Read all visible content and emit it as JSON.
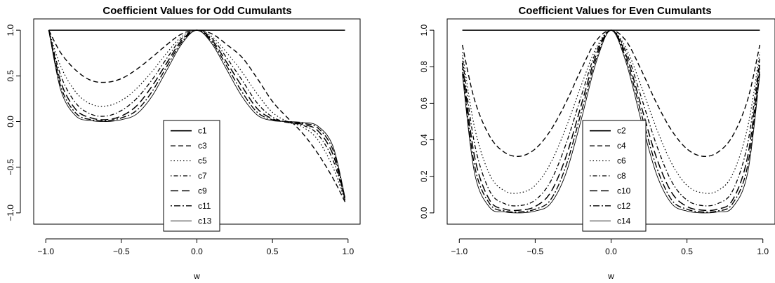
{
  "chart_data": [
    {
      "type": "line",
      "title": "Coefficient Values for Odd Cumulants",
      "xlabel": "w",
      "ylabel": "",
      "xlim": [
        -1.0,
        1.0
      ],
      "ylim": [
        -1.0,
        1.0
      ],
      "xticks": [
        -1.0,
        -0.5,
        0.0,
        0.5,
        1.0
      ],
      "xtick_labels": [
        "−1.0",
        "−0.5",
        "0.0",
        "0.5",
        "1.0"
      ],
      "yticks": [
        -1.0,
        -0.5,
        0.0,
        0.5,
        1.0
      ],
      "ytick_labels": [
        "−1.0",
        "−0.5",
        "0.0",
        "0.5",
        "1.0"
      ],
      "grid": false,
      "legend_position": "bottom-center",
      "x": [
        -0.98,
        -0.9,
        -0.8,
        -0.7,
        -0.6,
        -0.5,
        -0.4,
        -0.3,
        -0.2,
        -0.1,
        0.0,
        0.1,
        0.2,
        0.3,
        0.4,
        0.5,
        0.6,
        0.7,
        0.8,
        0.9,
        0.98
      ],
      "series": [
        {
          "name": "c1",
          "dash": "",
          "width": 1.6,
          "values": [
            1,
            1,
            1,
            1,
            1,
            1,
            1,
            1,
            1,
            1,
            1,
            1,
            1,
            1,
            1,
            1,
            1,
            1,
            1,
            1,
            1
          ]
        },
        {
          "name": "c3",
          "dash": "7,4",
          "width": 1.4,
          "values": [
            1.0,
            0.75,
            0.56,
            0.45,
            0.43,
            0.47,
            0.57,
            0.7,
            0.84,
            0.96,
            1.0,
            0.96,
            0.84,
            0.7,
            0.47,
            0.22,
            0.04,
            -0.13,
            -0.35,
            -0.62,
            -0.88
          ]
        },
        {
          "name": "c5",
          "dash": "1.5,3",
          "width": 1.2,
          "values": [
            1.0,
            0.6,
            0.32,
            0.19,
            0.17,
            0.23,
            0.36,
            0.54,
            0.75,
            0.93,
            1.0,
            0.93,
            0.75,
            0.54,
            0.3,
            0.1,
            0.0,
            -0.06,
            -0.2,
            -0.5,
            -0.87
          ]
        },
        {
          "name": "c7",
          "dash": "1.5,3,6,3",
          "width": 1.3,
          "values": [
            1.0,
            0.5,
            0.2,
            0.08,
            0.06,
            0.12,
            0.25,
            0.45,
            0.69,
            0.91,
            1.0,
            0.91,
            0.69,
            0.45,
            0.2,
            0.05,
            -0.01,
            -0.04,
            -0.14,
            -0.42,
            -0.86
          ]
        },
        {
          "name": "c9",
          "dash": "11,5",
          "width": 1.5,
          "values": [
            1.0,
            0.43,
            0.13,
            0.04,
            0.02,
            0.06,
            0.17,
            0.38,
            0.64,
            0.89,
            1.0,
            0.89,
            0.64,
            0.38,
            0.14,
            0.03,
            -0.01,
            -0.03,
            -0.1,
            -0.36,
            -0.85
          ]
        },
        {
          "name": "c11",
          "dash": "2,3,9,3",
          "width": 1.4,
          "values": [
            1.0,
            0.38,
            0.09,
            0.02,
            0.01,
            0.04,
            0.12,
            0.32,
            0.6,
            0.87,
            1.0,
            0.87,
            0.6,
            0.32,
            0.1,
            0.02,
            0.0,
            -0.02,
            -0.07,
            -0.31,
            -0.84
          ]
        },
        {
          "name": "c13",
          "dash": "",
          "width": 0.9,
          "values": [
            1.0,
            0.34,
            0.06,
            0.01,
            0.0,
            0.02,
            0.08,
            0.27,
            0.56,
            0.85,
            1.0,
            0.85,
            0.56,
            0.27,
            0.07,
            0.01,
            0.0,
            -0.01,
            -0.05,
            -0.27,
            -0.83
          ]
        }
      ]
    },
    {
      "type": "line",
      "title": "Coefficient Values for Even Cumulants",
      "xlabel": "w",
      "ylabel": "",
      "xlim": [
        -1.0,
        1.0
      ],
      "ylim": [
        0.0,
        1.0
      ],
      "xticks": [
        -1.0,
        -0.5,
        0.0,
        0.5,
        1.0
      ],
      "xtick_labels": [
        "−1.0",
        "−0.5",
        "0.0",
        "0.5",
        "1.0"
      ],
      "yticks": [
        0.0,
        0.2,
        0.4,
        0.6,
        0.8,
        1.0
      ],
      "ytick_labels": [
        "0.0",
        "0.2",
        "0.4",
        "0.6",
        "0.8",
        "1.0"
      ],
      "grid": false,
      "legend_position": "bottom-center",
      "x": [
        -0.98,
        -0.9,
        -0.8,
        -0.7,
        -0.6,
        -0.5,
        -0.4,
        -0.3,
        -0.2,
        -0.1,
        0.0,
        0.1,
        0.2,
        0.3,
        0.4,
        0.5,
        0.6,
        0.7,
        0.8,
        0.9,
        0.98
      ],
      "series": [
        {
          "name": "c2",
          "dash": "",
          "width": 1.6,
          "values": [
            1,
            1,
            1,
            1,
            1,
            1,
            1,
            1,
            1,
            1,
            1,
            1,
            1,
            1,
            1,
            1,
            1,
            1,
            1,
            1,
            1
          ]
        },
        {
          "name": "c4",
          "dash": "7,4",
          "width": 1.4,
          "values": [
            0.92,
            0.62,
            0.42,
            0.33,
            0.31,
            0.35,
            0.45,
            0.6,
            0.78,
            0.94,
            1.0,
            0.94,
            0.78,
            0.6,
            0.45,
            0.35,
            0.31,
            0.33,
            0.42,
            0.62,
            0.92
          ]
        },
        {
          "name": "c6",
          "dash": "1.5,3",
          "width": 1.2,
          "values": [
            0.88,
            0.47,
            0.21,
            0.12,
            0.11,
            0.15,
            0.27,
            0.46,
            0.69,
            0.9,
            1.0,
            0.9,
            0.69,
            0.46,
            0.27,
            0.15,
            0.11,
            0.12,
            0.21,
            0.47,
            0.88
          ]
        },
        {
          "name": "c8",
          "dash": "1.5,3,6,3",
          "width": 1.3,
          "values": [
            0.85,
            0.38,
            0.12,
            0.05,
            0.04,
            0.07,
            0.17,
            0.37,
            0.63,
            0.88,
            1.0,
            0.88,
            0.63,
            0.37,
            0.17,
            0.07,
            0.04,
            0.05,
            0.12,
            0.38,
            0.85
          ]
        },
        {
          "name": "c10",
          "dash": "11,5",
          "width": 1.5,
          "values": [
            0.82,
            0.31,
            0.07,
            0.02,
            0.015,
            0.035,
            0.11,
            0.3,
            0.58,
            0.86,
            1.0,
            0.86,
            0.58,
            0.3,
            0.11,
            0.035,
            0.015,
            0.02,
            0.07,
            0.31,
            0.82
          ]
        },
        {
          "name": "c12",
          "dash": "2,3,9,3",
          "width": 1.4,
          "values": [
            0.79,
            0.26,
            0.05,
            0.01,
            0.005,
            0.02,
            0.07,
            0.25,
            0.54,
            0.84,
            1.0,
            0.84,
            0.54,
            0.25,
            0.07,
            0.02,
            0.005,
            0.01,
            0.05,
            0.26,
            0.79
          ]
        },
        {
          "name": "c14",
          "dash": "",
          "width": 0.9,
          "values": [
            0.76,
            0.22,
            0.03,
            0.005,
            0.0,
            0.01,
            0.05,
            0.21,
            0.5,
            0.82,
            1.0,
            0.82,
            0.5,
            0.21,
            0.05,
            0.01,
            0.0,
            0.005,
            0.03,
            0.22,
            0.76
          ]
        }
      ]
    }
  ]
}
